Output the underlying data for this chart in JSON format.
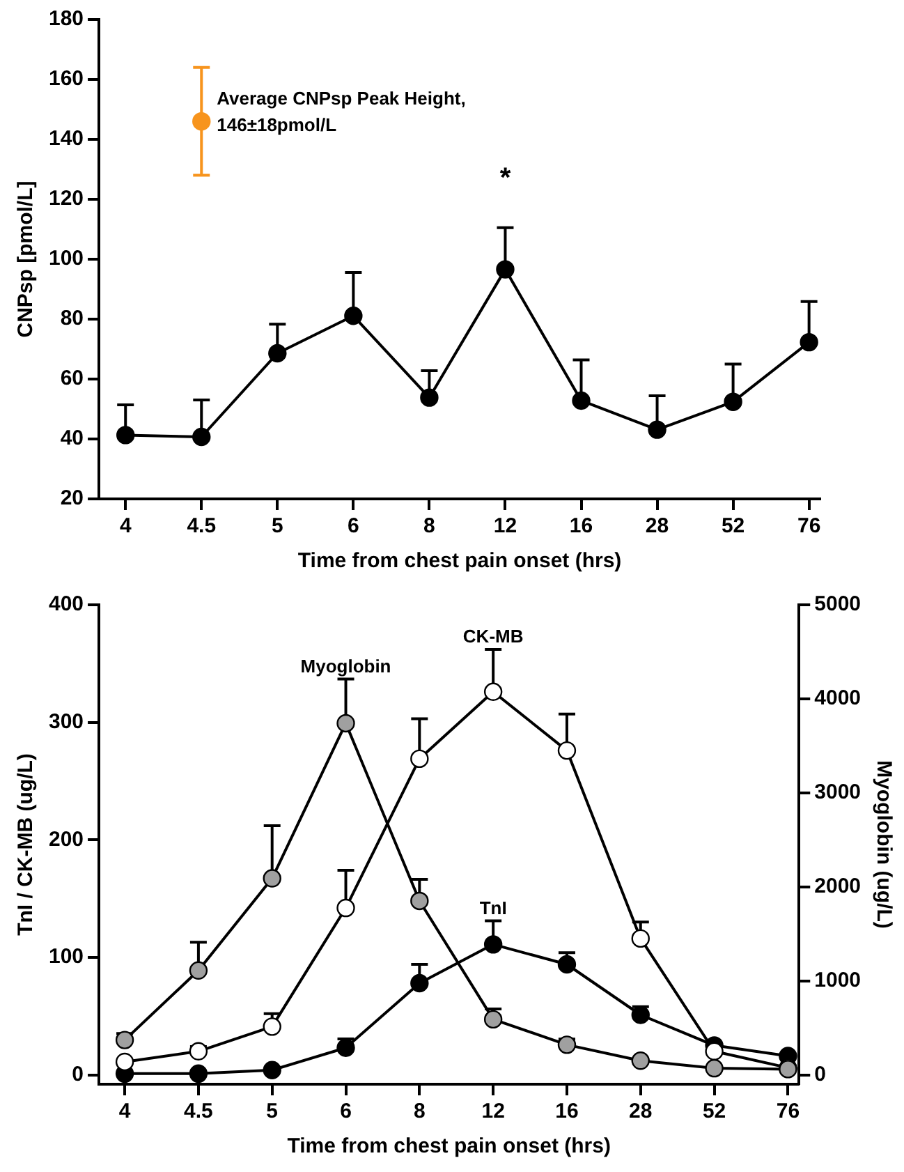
{
  "chart_data": [
    {
      "type": "line",
      "xlabel": "Time from chest pain onset (hrs)",
      "ylabel": "CNPsp [pmol/L]",
      "categories": [
        "4",
        "4.5",
        "5",
        "6",
        "8",
        "12",
        "16",
        "28",
        "52",
        "76"
      ],
      "ylim": [
        20,
        180
      ],
      "yticks": [
        20,
        40,
        60,
        80,
        100,
        120,
        140,
        160,
        180
      ],
      "grid": false,
      "legend": false,
      "marker": "circle",
      "series": [
        {
          "color": "#000000",
          "values": [
            41.3,
            40.7,
            68.6,
            81.1,
            53.8,
            96.6,
            52.8,
            43.1,
            52.4,
            72.3
          ],
          "errors": [
            [
              41.3,
              51.4
            ],
            [
              40.7,
              53.0
            ],
            [
              68.6,
              78.3
            ],
            [
              81.1,
              95.6
            ],
            [
              53.8,
              62.8
            ],
            [
              96.6,
              110.5
            ],
            [
              52.8,
              66.4
            ],
            [
              43.1,
              54.4
            ],
            [
              52.4,
              65.0
            ],
            [
              72.3,
              85.9
            ]
          ]
        },
        {
          "type": "scatter",
          "color": "#f7941d",
          "x": [
            "4.5"
          ],
          "values": [
            146
          ],
          "errors": [
            18
          ]
        }
      ],
      "annotations": [
        {
          "text": "Average CNPsp Peak Height,\n146±18pmol/L",
          "x": "4.5",
          "y": 146
        },
        "*"
      ]
    },
    {
      "type": "line",
      "xlabel": "Time from chest pain onset (hrs)",
      "ylabel": "TnI / CK-MB (ug/L)",
      "y2label": "Myoglobin (ug/L)",
      "categories": [
        "4",
        "4.5",
        "5",
        "6",
        "8",
        "12",
        "16",
        "28",
        "52",
        "76"
      ],
      "ylim": [
        -8,
        400
      ],
      "yticks": [
        0,
        100,
        200,
        300,
        400
      ],
      "y2lim": [
        -100,
        5000
      ],
      "y2ticks": [
        0,
        1000,
        2000,
        3000,
        4000,
        5000
      ],
      "grid": false,
      "legend": false,
      "marker": "circle",
      "series": [
        {
          "name": "Myoglobin",
          "axis": "y2",
          "color": "#a0a0a0",
          "values": [
            370,
            1110,
            2090,
            3740,
            1850,
            590,
            320,
            150,
            70,
            60
          ],
          "errors": [
            [
              370,
              440
            ],
            [
              1110,
              1410
            ],
            [
              2090,
              2650
            ],
            [
              3740,
              4210
            ],
            [
              1850,
              2080
            ],
            [
              590,
              700
            ],
            [
              320,
              380
            ],
            null,
            null,
            null
          ]
        },
        {
          "name": "CK-MB",
          "color": "#ffffff",
          "values": [
            11,
            20,
            41,
            142,
            269,
            326,
            276,
            116,
            20,
            6
          ],
          "errors": [
            null,
            [
              20,
              24
            ],
            [
              41,
              52
            ],
            [
              142,
              174
            ],
            [
              269,
              303
            ],
            [
              326,
              362
            ],
            [
              276,
              307
            ],
            [
              116,
              130
            ],
            null,
            null
          ]
        },
        {
          "name": "TnI",
          "color": "#000000",
          "values": [
            1,
            1,
            4,
            23,
            78,
            111,
            94,
            51,
            25,
            16
          ],
          "errors": [
            null,
            null,
            null,
            [
              23,
              30.5
            ],
            [
              78,
              94
            ],
            [
              111,
              131
            ],
            [
              94,
              104
            ],
            [
              51,
              58
            ],
            null,
            null
          ]
        }
      ]
    }
  ]
}
